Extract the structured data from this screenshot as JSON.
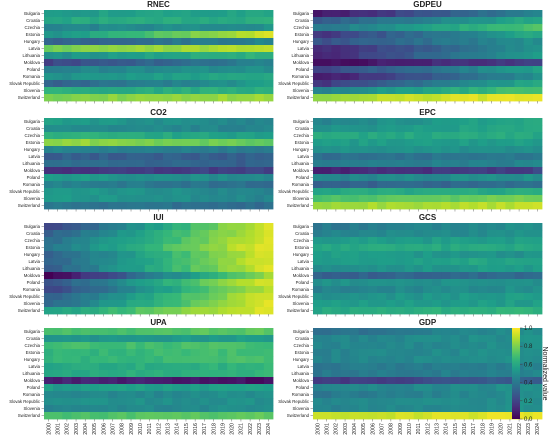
{
  "chart_data": {
    "type": "heatmap",
    "rows": [
      "Bulgaria",
      "Croatia",
      "Czechia",
      "Estonia",
      "Hungary",
      "Latvia",
      "Lithuania",
      "Moldova",
      "Poland",
      "Romania",
      "Slovak Republic",
      "Slovenia",
      "Switzerland"
    ],
    "years": [
      "2000",
      "2001",
      "2002",
      "2003",
      "2004",
      "2005",
      "2006",
      "2007",
      "2008",
      "2009",
      "2010",
      "2011",
      "2012",
      "2013",
      "2014",
      "2015",
      "2016",
      "2017",
      "2018",
      "2019",
      "2020",
      "2021",
      "2022",
      "2023",
      "2024"
    ],
    "colormap": "viridis",
    "colorbar": {
      "label": "Normalized value",
      "range": [
        0.0,
        1.0
      ],
      "ticks": [
        "0.0",
        "0.2",
        "0.4",
        "0.6",
        "0.8",
        "1.0"
      ]
    },
    "panels": [
      {
        "title": "RNEC",
        "rows": [
          [
            0.55,
            0.58
          ],
          [
            0.6,
            0.62
          ],
          [
            0.45,
            0.5
          ],
          [
            0.5,
            0.95
          ],
          [
            0.3,
            0.45
          ],
          [
            0.78,
            0.9
          ],
          [
            0.5,
            0.65
          ],
          [
            0.2,
            0.45
          ],
          [
            0.45,
            0.5
          ],
          [
            0.5,
            0.6
          ],
          [
            0.3,
            0.55
          ],
          [
            0.62,
            0.62
          ],
          [
            0.8,
            0.85
          ]
        ]
      },
      {
        "title": "GDPEU",
        "rows": [
          [
            0.05,
            0.45
          ],
          [
            0.3,
            0.6
          ],
          [
            0.4,
            0.72
          ],
          [
            0.15,
            0.6
          ],
          [
            0.25,
            0.5
          ],
          [
            0.1,
            0.5
          ],
          [
            0.1,
            0.55
          ],
          [
            0.02,
            0.2
          ],
          [
            0.2,
            0.55
          ],
          [
            0.05,
            0.5
          ],
          [
            0.15,
            0.6
          ],
          [
            0.45,
            0.72
          ],
          [
            0.85,
            0.98
          ]
        ]
      },
      {
        "title": "CO2",
        "rows": [
          [
            0.55,
            0.45
          ],
          [
            0.5,
            0.45
          ],
          [
            0.65,
            0.55
          ],
          [
            0.85,
            0.75
          ],
          [
            0.45,
            0.4
          ],
          [
            0.3,
            0.3
          ],
          [
            0.35,
            0.3
          ],
          [
            0.15,
            0.2
          ],
          [
            0.55,
            0.45
          ],
          [
            0.45,
            0.35
          ],
          [
            0.55,
            0.45
          ],
          [
            0.55,
            0.45
          ],
          [
            0.4,
            0.35
          ]
        ]
      },
      {
        "title": "EPC",
        "rows": [
          [
            0.45,
            0.6
          ],
          [
            0.5,
            0.6
          ],
          [
            0.6,
            0.6
          ],
          [
            0.55,
            0.55
          ],
          [
            0.5,
            0.5
          ],
          [
            0.35,
            0.4
          ],
          [
            0.4,
            0.45
          ],
          [
            0.1,
            0.2
          ],
          [
            0.45,
            0.5
          ],
          [
            0.3,
            0.35
          ],
          [
            0.6,
            0.6
          ],
          [
            0.7,
            0.8
          ],
          [
            0.85,
            0.9
          ]
        ]
      },
      {
        "title": "IUI",
        "rows": [
          [
            0.2,
            0.95
          ],
          [
            0.3,
            0.95
          ],
          [
            0.35,
            0.95
          ],
          [
            0.4,
            0.97
          ],
          [
            0.3,
            0.95
          ],
          [
            0.3,
            0.95
          ],
          [
            0.3,
            0.95
          ],
          [
            0.0,
            0.85
          ],
          [
            0.25,
            0.95
          ],
          [
            0.2,
            0.9
          ],
          [
            0.3,
            0.95
          ],
          [
            0.35,
            0.95
          ],
          [
            0.55,
            0.97
          ]
        ]
      },
      {
        "title": "GCS",
        "rows": [
          [
            0.4,
            0.5
          ],
          [
            0.45,
            0.5
          ],
          [
            0.55,
            0.55
          ],
          [
            0.6,
            0.6
          ],
          [
            0.55,
            0.5
          ],
          [
            0.55,
            0.6
          ],
          [
            0.5,
            0.55
          ],
          [
            0.3,
            0.35
          ],
          [
            0.5,
            0.5
          ],
          [
            0.45,
            0.5
          ],
          [
            0.5,
            0.55
          ],
          [
            0.55,
            0.55
          ],
          [
            0.6,
            0.65
          ]
        ]
      },
      {
        "title": "UPA",
        "rows": [
          [
            0.7,
            0.75
          ],
          [
            0.5,
            0.55
          ],
          [
            0.7,
            0.7
          ],
          [
            0.65,
            0.7
          ],
          [
            0.65,
            0.7
          ],
          [
            0.6,
            0.65
          ],
          [
            0.6,
            0.65
          ],
          [
            0.1,
            0.05
          ],
          [
            0.55,
            0.55
          ],
          [
            0.45,
            0.5
          ],
          [
            0.5,
            0.5
          ],
          [
            0.45,
            0.5
          ],
          [
            0.7,
            0.75
          ]
        ]
      },
      {
        "title": "GDP",
        "rows": [
          [
            0.35,
            0.5
          ],
          [
            0.45,
            0.5
          ],
          [
            0.45,
            0.5
          ],
          [
            0.45,
            0.5
          ],
          [
            0.45,
            0.5
          ],
          [
            0.4,
            0.45
          ],
          [
            0.4,
            0.45
          ],
          [
            0.15,
            0.3
          ],
          [
            0.45,
            0.5
          ],
          [
            0.4,
            0.5
          ],
          [
            0.45,
            0.5
          ],
          [
            0.45,
            0.5
          ],
          [
            0.9,
            0.97
          ]
        ]
      }
    ]
  }
}
